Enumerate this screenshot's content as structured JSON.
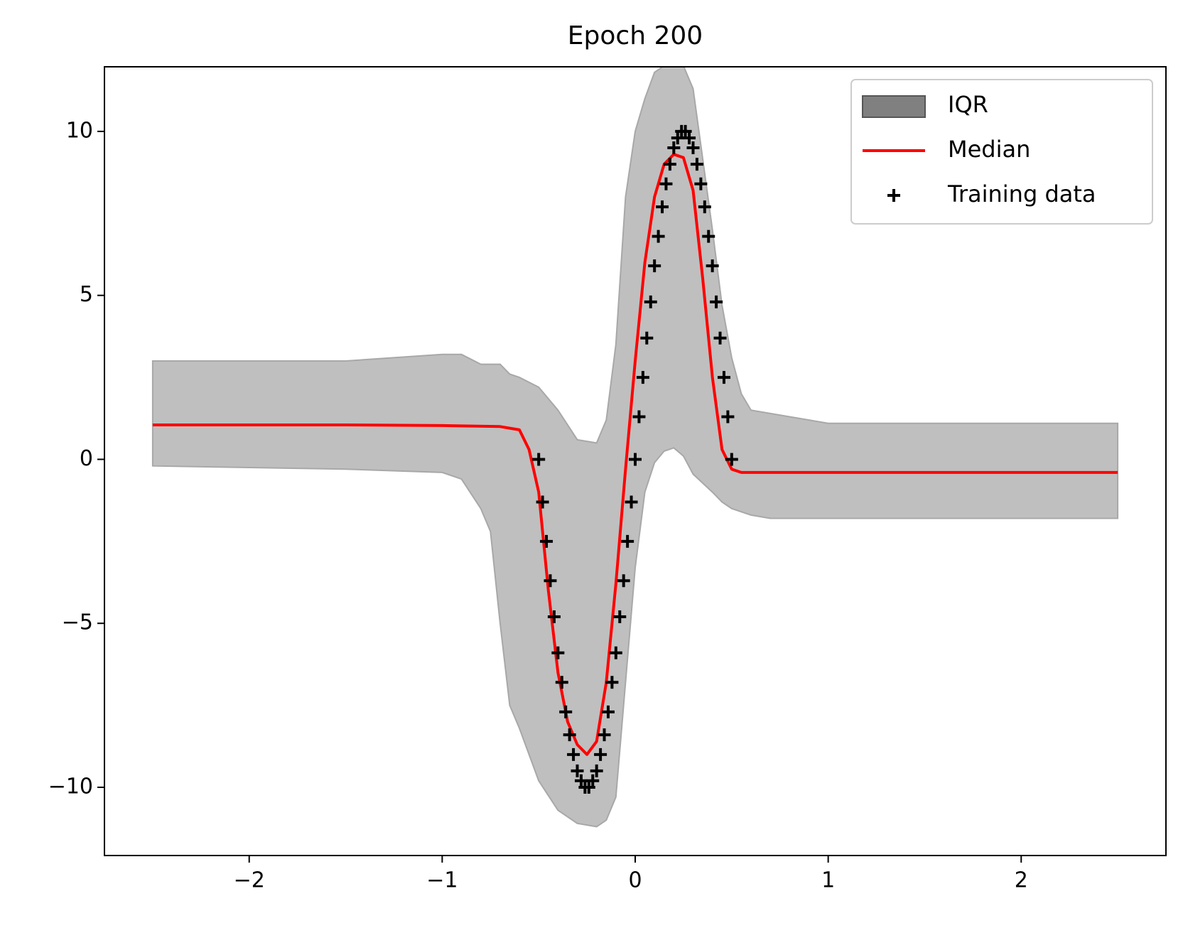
{
  "chart_data": {
    "type": "band-line-scatter",
    "title": "Epoch 200",
    "xlim": [
      -2.75,
      2.75
    ],
    "ylim": [
      -12.08,
      11.97
    ],
    "xticks": [
      {
        "value": -2,
        "label": "−2"
      },
      {
        "value": -1,
        "label": "−1"
      },
      0,
      1,
      2
    ],
    "yticks": [
      {
        "value": -10,
        "label": "−10"
      },
      {
        "value": -5,
        "label": "−5"
      },
      0,
      5,
      10
    ],
    "legend": "upper right",
    "series": [
      {
        "name": "IQR",
        "kind": "band",
        "color": "#bfbfbf",
        "legend_color": "#808080",
        "x": [
          -2.5,
          -1.5,
          -1.0,
          -0.9,
          -0.8,
          -0.75,
          -0.7,
          -0.65,
          -0.6,
          -0.5,
          -0.4,
          -0.3,
          -0.2,
          -0.15,
          -0.1,
          -0.05,
          0,
          0.05,
          0.1,
          0.15,
          0.2,
          0.25,
          0.3,
          0.4,
          0.45,
          0.5,
          0.55,
          0.6,
          0.7,
          0.8,
          1.0,
          2.5
        ],
        "upper": [
          3.0,
          3.0,
          3.2,
          3.2,
          2.9,
          2.9,
          2.9,
          2.6,
          2.5,
          2.2,
          1.5,
          0.6,
          0.5,
          1.2,
          3.5,
          8.0,
          10.0,
          11.0,
          11.8,
          12.0,
          12.0,
          12.0,
          11.3,
          7.0,
          4.7,
          3.1,
          2.0,
          1.5,
          1.4,
          1.3,
          1.1,
          1.1
        ],
        "lower": [
          -0.2,
          -0.3,
          -0.4,
          -0.6,
          -1.5,
          -2.2,
          -5.0,
          -7.5,
          -8.2,
          -9.8,
          -10.7,
          -11.1,
          -11.2,
          -11.0,
          -10.3,
          -6.8,
          -3.3,
          -1.0,
          -0.1,
          0.25,
          0.35,
          0.1,
          -0.45,
          -1.0,
          -1.3,
          -1.5,
          -1.6,
          -1.7,
          -1.8,
          -1.8,
          -1.8,
          -1.8
        ]
      },
      {
        "name": "Median",
        "kind": "line",
        "color": "#ff0000",
        "x": [
          -2.5,
          -1.5,
          -1.0,
          -0.7,
          -0.65,
          -0.6,
          -0.55,
          -0.5,
          -0.45,
          -0.4,
          -0.35,
          -0.3,
          -0.25,
          -0.2,
          -0.15,
          -0.1,
          -0.05,
          0,
          0.05,
          0.1,
          0.15,
          0.2,
          0.25,
          0.3,
          0.35,
          0.4,
          0.45,
          0.5,
          0.55,
          0.6,
          2.5
        ],
        "values": [
          1.05,
          1.05,
          1.03,
          1.0,
          0.95,
          0.9,
          0.3,
          -1.0,
          -4.0,
          -6.5,
          -8.0,
          -8.7,
          -9.0,
          -8.6,
          -6.8,
          -3.8,
          -0.3,
          3.0,
          6.0,
          8.0,
          9.0,
          9.3,
          9.2,
          8.2,
          5.5,
          2.5,
          0.3,
          -0.3,
          -0.4,
          -0.4,
          -0.4
        ]
      },
      {
        "name": "Training data",
        "kind": "scatter",
        "color": "#000000",
        "x": [
          -0.5,
          -0.48,
          -0.46,
          -0.44,
          -0.42,
          -0.4,
          -0.38,
          -0.36,
          -0.34,
          -0.32,
          -0.3,
          -0.28,
          -0.26,
          -0.24,
          -0.22,
          -0.2,
          -0.18,
          -0.16,
          -0.14,
          -0.12,
          -0.1,
          -0.08,
          -0.06,
          -0.04,
          -0.02,
          0,
          0.02,
          0.04,
          0.06,
          0.08,
          0.1,
          0.12,
          0.14,
          0.16,
          0.18,
          0.2,
          0.22,
          0.24,
          0.26,
          0.28,
          0.3,
          0.32,
          0.34,
          0.36,
          0.38,
          0.4,
          0.42,
          0.44,
          0.46,
          0.48,
          0.5
        ],
        "values": [
          0.0,
          -1.3,
          -2.5,
          -3.7,
          -4.8,
          -5.9,
          -6.8,
          -7.7,
          -8.4,
          -9.0,
          -9.5,
          -9.8,
          -10.0,
          -10.0,
          -9.8,
          -9.5,
          -9.0,
          -8.4,
          -7.7,
          -6.8,
          -5.9,
          -4.8,
          -3.7,
          -2.5,
          -1.3,
          0.0,
          1.3,
          2.5,
          3.7,
          4.8,
          5.9,
          6.8,
          7.7,
          8.4,
          9.0,
          9.5,
          9.8,
          10.0,
          10.0,
          9.8,
          9.5,
          9.0,
          8.4,
          7.7,
          6.8,
          5.9,
          4.8,
          3.7,
          2.5,
          1.3,
          0.0
        ]
      }
    ]
  }
}
